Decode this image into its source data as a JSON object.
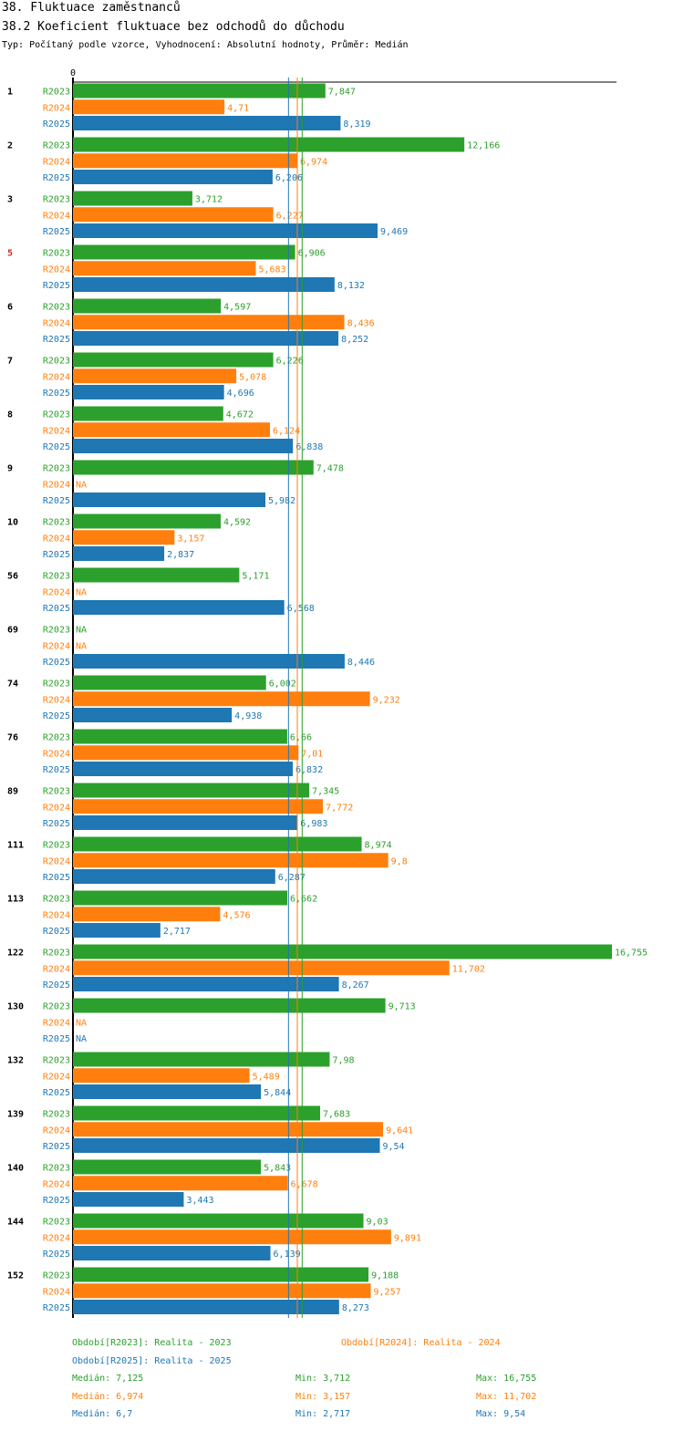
{
  "header": {
    "title": "38. Fluktuace zaměstnanců",
    "subtitle": "38.2 Koeficient fluktuace bez odchodů do důchodu",
    "meta": "Typ: Počítaný podle vzorce, Vyhodnocení: Absolutní hodnoty, Průměr: Medián"
  },
  "colors": {
    "R2023": "#2ca02c",
    "R2024": "#ff7f0e",
    "R2025": "#1f77b4",
    "highlight": "#d62728"
  },
  "chart_data": {
    "type": "bar",
    "orientation": "horizontal",
    "title": "38.2 Koeficient fluktuace bez odchodů do důchodu",
    "axis_zero_label": "0",
    "xlim": [
      0,
      16.755
    ],
    "na_label": "NA",
    "series_names": [
      "R2023",
      "R2024",
      "R2025"
    ],
    "categories": [
      "1",
      "2",
      "3",
      "5",
      "6",
      "7",
      "8",
      "9",
      "10",
      "56",
      "69",
      "74",
      "76",
      "89",
      "111",
      "113",
      "122",
      "130",
      "132",
      "139",
      "140",
      "144",
      "152"
    ],
    "highlight_category": "5",
    "series": [
      {
        "name": "R2023",
        "values": [
          7.847,
          12.166,
          3.712,
          6.906,
          4.597,
          6.226,
          4.672,
          7.478,
          4.592,
          5.171,
          null,
          6.002,
          6.66,
          7.345,
          8.974,
          6.662,
          16.755,
          9.713,
          7.98,
          7.683,
          5.843,
          9.03,
          9.188
        ],
        "labels": [
          "7,847",
          "12,166",
          "3,712",
          "6,906",
          "4,597",
          "6,226",
          "4,672",
          "7,478",
          "4,592",
          "5,171",
          "NA",
          "6,002",
          "6,66",
          "7,345",
          "8,974",
          "6,662",
          "16,755",
          "9,713",
          "7,98",
          "7,683",
          "5,843",
          "9,03",
          "9,188"
        ]
      },
      {
        "name": "R2024",
        "values": [
          4.71,
          6.974,
          6.227,
          5.683,
          8.436,
          5.078,
          6.124,
          null,
          3.157,
          null,
          null,
          9.232,
          7.01,
          7.772,
          9.8,
          4.576,
          11.702,
          null,
          5.489,
          9.641,
          6.678,
          9.891,
          9.257
        ],
        "labels": [
          "4,71",
          "6,974",
          "6,227",
          "5,683",
          "8,436",
          "5,078",
          "6,124",
          "NA",
          "3,157",
          "NA",
          "NA",
          "9,232",
          "7,01",
          "7,772",
          "9,8",
          "4,576",
          "11,702",
          "NA",
          "5,489",
          "9,641",
          "6,678",
          "9,891",
          "9,257"
        ]
      },
      {
        "name": "R2025",
        "values": [
          8.319,
          6.206,
          9.469,
          8.132,
          8.252,
          4.696,
          6.838,
          5.982,
          2.837,
          6.568,
          8.446,
          4.938,
          6.832,
          6.983,
          6.287,
          2.717,
          8.267,
          null,
          5.844,
          9.54,
          3.443,
          6.139,
          8.273
        ],
        "labels": [
          "8,319",
          "6,206",
          "9,469",
          "8,132",
          "8,252",
          "4,696",
          "6,838",
          "5,982",
          "2,837",
          "6,568",
          "8,446",
          "4,938",
          "6,832",
          "6,983",
          "6,287",
          "2,717",
          "8,267",
          "NA",
          "5,844",
          "9,54",
          "3,443",
          "6,139",
          "8,273"
        ]
      }
    ],
    "median_lines": [
      {
        "series": "R2023",
        "value": 7.125
      },
      {
        "series": "R2024",
        "value": 6.974
      },
      {
        "series": "R2025",
        "value": 6.7
      }
    ]
  },
  "legend": {
    "period_2023": "Období[R2023]: Realita - 2023",
    "period_2024": "Období[R2024]: Realita - 2024",
    "period_2025": "Období[R2025]: Realita - 2025",
    "stats": [
      {
        "median": "Medián: 7,125",
        "min": "Min: 3,712",
        "max": "Max: 16,755"
      },
      {
        "median": "Medián: 6,974",
        "min": "Min: 3,157",
        "max": "Max: 11,702"
      },
      {
        "median": "Medián: 6,7",
        "min": "Min: 2,717",
        "max": "Max: 9,54"
      }
    ]
  }
}
